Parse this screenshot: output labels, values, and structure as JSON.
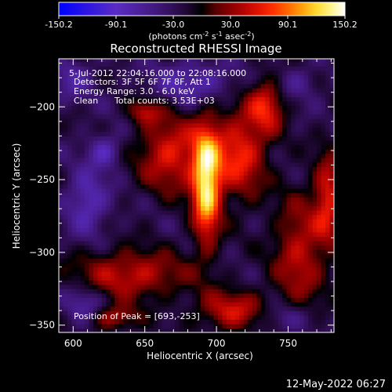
{
  "chart_data": {
    "type": "heatmap",
    "title": "Reconstructed RHESSI Image",
    "xlabel": "Heliocentric X (arcsec)",
    "ylabel": "Heliocentric Y (arcsec)",
    "xlim": [
      590,
      782
    ],
    "ylim": [
      -355,
      -167
    ],
    "x_ticks": [
      "600",
      "650",
      "700",
      "750"
    ],
    "y_ticks": [
      "-200",
      "-250",
      "-300",
      "-350"
    ],
    "colorbar": {
      "ticks": [
        "-150.2",
        "-90.1",
        "-30.0",
        "30.0",
        "90.1",
        "150.2"
      ],
      "range": [
        -150.2,
        150.2
      ],
      "colors": [
        "#0000ff",
        "#5a2cc4",
        "#2a0a4a",
        "#000000",
        "#8a0000",
        "#ff0000",
        "#ff8c00",
        "#ffff60",
        "#ffffff"
      ],
      "unit_prefix": "(photons cm",
      "unit_sup1": "-2",
      "unit_mid": " s",
      "unit_sup2": "-1",
      "unit_mid2": " asec",
      "unit_sup3": "-2",
      "unit_suffix": ")"
    },
    "annotations": {
      "time_range": "5-Jul-2012 22:04:16.000 to 22:08:16.000",
      "detectors": "Detectors: 3F 5F 6F 7F 8F, Att 1",
      "energy": "Energy Range: 3.0 - 6.0 keV",
      "clean": "Clean",
      "counts": "Total counts: 3.53E+03",
      "peak": "Position of Peak = [693,-253]"
    },
    "peak": {
      "x": 693,
      "y": -253
    },
    "sources": [
      {
        "x": 693,
        "y": -253,
        "sx": 7,
        "sy": 28,
        "amp": 150
      },
      {
        "x": 668,
        "y": -232,
        "sx": 16,
        "sy": 18,
        "amp": 85
      },
      {
        "x": 716,
        "y": -232,
        "sx": 13,
        "sy": 22,
        "amp": 90
      },
      {
        "x": 735,
        "y": -198,
        "sx": 9,
        "sy": 14,
        "amp": 80
      },
      {
        "x": 640,
        "y": -315,
        "sx": 28,
        "sy": 12,
        "amp": 75
      },
      {
        "x": 628,
        "y": -345,
        "sx": 12,
        "sy": 6,
        "amp": 65
      },
      {
        "x": 712,
        "y": -340,
        "sx": 18,
        "sy": 10,
        "amp": 75
      },
      {
        "x": 758,
        "y": -300,
        "sx": 13,
        "sy": 28,
        "amp": 70
      },
      {
        "x": 778,
        "y": -262,
        "sx": 7,
        "sy": 22,
        "amp": 80
      },
      {
        "x": 650,
        "y": -203,
        "sx": 8,
        "sy": 6,
        "amp": 60
      },
      {
        "x": 622,
        "y": -230,
        "sx": 8,
        "sy": 8,
        "amp": -55
      },
      {
        "x": 610,
        "y": -265,
        "sx": 10,
        "sy": 15,
        "amp": -60
      },
      {
        "x": 685,
        "y": -183,
        "sx": 20,
        "sy": 10,
        "amp": -55
      },
      {
        "x": 600,
        "y": -180,
        "sx": 10,
        "sy": 10,
        "amp": -40
      },
      {
        "x": 608,
        "y": -335,
        "sx": 10,
        "sy": 10,
        "amp": -45
      },
      {
        "x": 755,
        "y": -183,
        "sx": 12,
        "sy": 8,
        "amp": -30
      },
      {
        "x": 745,
        "y": -345,
        "sx": 14,
        "sy": 8,
        "amp": -40
      }
    ],
    "background_level": -25
  },
  "footer": {
    "timestamp": "12-May-2022 06:27"
  }
}
